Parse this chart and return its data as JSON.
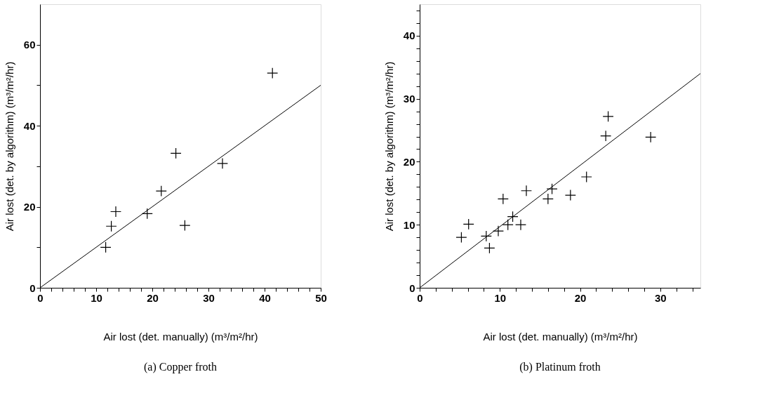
{
  "chart_data": [
    {
      "type": "scatter",
      "xlabel": "Air lost (det. manually) (m³/m²/hr)",
      "ylabel": "Air lost (det. by algorithm) (m³/m²/hr)",
      "grid": false,
      "xlim": [
        0,
        50
      ],
      "ylim": [
        0,
        70
      ],
      "xticks": [
        0,
        {
          "value": 2,
          "label": null
        },
        {
          "value": 4,
          "label": null
        },
        {
          "value": 6,
          "label": null
        },
        {
          "value": 8,
          "label": null
        },
        10,
        {
          "value": 12,
          "label": null
        },
        {
          "value": 14,
          "label": null
        },
        {
          "value": 16,
          "label": null
        },
        {
          "value": 18,
          "label": null
        },
        20,
        {
          "value": 22,
          "label": null
        },
        {
          "value": 24,
          "label": null
        },
        {
          "value": 26,
          "label": null
        },
        {
          "value": 28,
          "label": null
        },
        30,
        {
          "value": 32,
          "label": null
        },
        {
          "value": 34,
          "label": null
        },
        {
          "value": 36,
          "label": null
        },
        {
          "value": 38,
          "label": null
        },
        40,
        {
          "value": 42,
          "label": null
        },
        {
          "value": 44,
          "label": null
        },
        {
          "value": 46,
          "label": null
        },
        {
          "value": 48,
          "label": null
        },
        50
      ],
      "yticks": [
        0,
        {
          "value": 10,
          "label": null
        },
        20,
        {
          "value": 30,
          "label": null
        },
        40,
        {
          "value": 50,
          "label": null
        },
        60
      ],
      "series": [
        {
          "type": "scatter",
          "marker": "cross",
          "color": "#000000",
          "x": [
            11.7,
            12.7,
            13.5,
            19.1,
            21.6,
            24.2,
            25.8,
            32.5,
            41.4
          ],
          "values": [
            10.0,
            15.2,
            18.8,
            18.3,
            23.9,
            33.2,
            15.4,
            30.7,
            53.0
          ]
        },
        {
          "type": "line",
          "marker": "none",
          "color": "#000000",
          "x": [
            0,
            50
          ],
          "values": [
            0,
            50
          ]
        }
      ],
      "annotations": [
        "(a)  Copper froth"
      ]
    },
    {
      "type": "scatter",
      "xlabel": "Air lost (det. manually) (m³/m²/hr)",
      "ylabel": "Air lost (det. by algorithm) (m³/m²/hr)",
      "grid": false,
      "xlim": [
        0,
        35
      ],
      "ylim": [
        0,
        45
      ],
      "xticks": [
        0,
        {
          "value": 2,
          "label": null
        },
        {
          "value": 4,
          "label": null
        },
        {
          "value": 6,
          "label": null
        },
        {
          "value": 8,
          "label": null
        },
        10,
        {
          "value": 12,
          "label": null
        },
        {
          "value": 14,
          "label": null
        },
        {
          "value": 16,
          "label": null
        },
        {
          "value": 18,
          "label": null
        },
        20,
        {
          "value": 22,
          "label": null
        },
        {
          "value": 24,
          "label": null
        },
        {
          "value": 26,
          "label": null
        },
        {
          "value": 28,
          "label": null
        },
        30,
        {
          "value": 32,
          "label": null
        },
        {
          "value": 34,
          "label": null
        }
      ],
      "yticks": [
        0,
        {
          "value": 2,
          "label": null
        },
        {
          "value": 4,
          "label": null
        },
        {
          "value": 6,
          "label": null
        },
        {
          "value": 8,
          "label": null
        },
        10,
        {
          "value": 12,
          "label": null
        },
        {
          "value": 14,
          "label": null
        },
        {
          "value": 16,
          "label": null
        },
        {
          "value": 18,
          "label": null
        },
        20,
        {
          "value": 22,
          "label": null
        },
        {
          "value": 24,
          "label": null
        },
        {
          "value": 26,
          "label": null
        },
        {
          "value": 28,
          "label": null
        },
        30,
        {
          "value": 32,
          "label": null
        },
        {
          "value": 34,
          "label": null
        },
        {
          "value": 36,
          "label": null
        },
        {
          "value": 38,
          "label": null
        },
        40,
        {
          "value": 42,
          "label": null
        },
        {
          "value": 44,
          "label": null
        }
      ],
      "series": [
        {
          "type": "scatter",
          "marker": "cross",
          "color": "#000000",
          "x": [
            5.2,
            6.1,
            8.3,
            8.7,
            9.8,
            10.4,
            11.0,
            11.6,
            12.6,
            13.3,
            16.0,
            16.5,
            18.8,
            20.8,
            23.2,
            23.5,
            28.8
          ],
          "values": [
            8.0,
            10.1,
            8.2,
            6.3,
            9.0,
            14.1,
            10.0,
            11.3,
            10.0,
            15.4,
            14.1,
            15.7,
            14.7,
            17.6,
            24.1,
            27.2,
            23.9
          ]
        },
        {
          "type": "line",
          "marker": "none",
          "color": "#000000",
          "x": [
            0,
            35
          ],
          "values": [
            0,
            34
          ]
        }
      ],
      "annotations": [
        "(b)  Platinum froth"
      ]
    }
  ]
}
